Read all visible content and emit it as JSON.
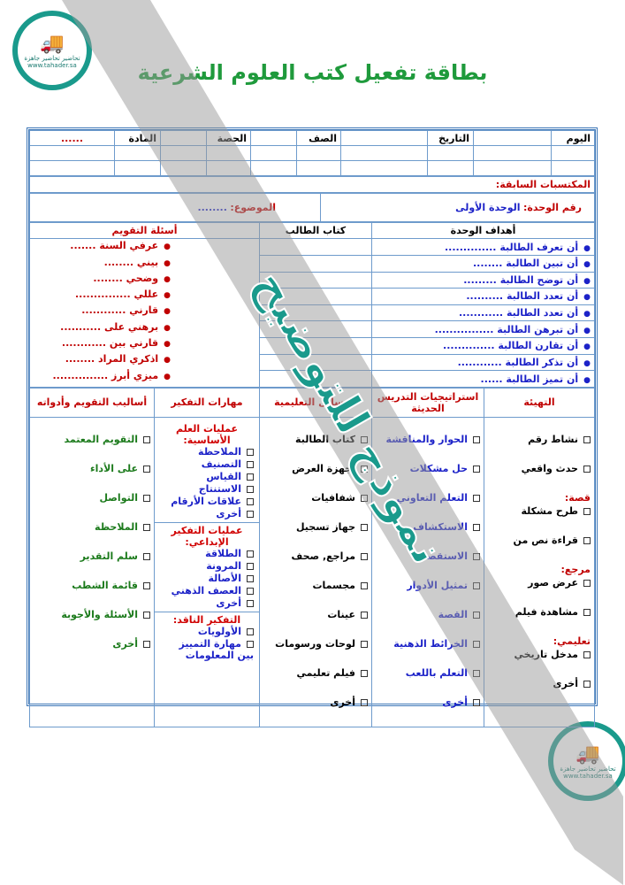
{
  "logo": {
    "brand": "تحاضير تحاضير جاهزة",
    "site": "www.tahader.sa"
  },
  "title": "بطاقة تفعيل كتب العلوم الشرعية",
  "header": {
    "day": "اليوم",
    "date": "التاريخ",
    "class": "الصف",
    "period": "الحصة",
    "subject": "المادة",
    "subject_value": "......"
  },
  "prior": "المكتسبات السابقة:",
  "unit": {
    "label": "رقم الوحدة:",
    "value": "الوحدة الأولى",
    "topic_label": "الموضوع:",
    "topic_value": "........"
  },
  "cols1": {
    "objectives": "أهداف الوحدة",
    "book": "كتاب الطالب",
    "questions": "أسئلة التقويم"
  },
  "objectives": [
    "أن تعرف الطالبة ..............",
    "أن تبين الطالبة ........",
    "أن توضح الطالبة .........",
    "أن تعدد الطالبة ..........",
    "أن تعدد الطالبة ............",
    "أن تبرهن الطالبة ................",
    "أن تقارن الطالبة ..............",
    "أن تذكر الطالبة ............",
    "أن تميز الطالبة ......"
  ],
  "questions": [
    "عرفي السنة .......",
    "بيني ........",
    "وضحي ........",
    "عللي ...............",
    "قارني ............",
    "برهني على ...........",
    "قارني بين ............",
    "اذكري المراد ........",
    "ميزي أبرز ..............."
  ],
  "cols2": {
    "warmup": "التهيئة",
    "strategies": "استراتيجيات التدريس الحديثة",
    "aids": "الوسائل التعليمية",
    "thinking": "مهارات التفكير",
    "assessment": "أساليب التقويم وأدواته"
  },
  "warmup": {
    "items1": [
      "نشاط رقم",
      "حدث واقعي"
    ],
    "story": "قصة:",
    "items2": [
      "طرح مشكلة",
      "قراءة نص من"
    ],
    "ref": "مرجع:",
    "items3": [
      "عرض صور",
      "مشاهدة فيلم"
    ],
    "edu": "تعليمي:",
    "items4": [
      "مدخل تاريخي",
      "أخرى"
    ]
  },
  "strategies": [
    "الحوار والمناقشة",
    "حل مشكلات",
    "التعلم التعاوني",
    "الاستكشاف",
    "الاستقصاء",
    "تمثيل الأدوار",
    "القصة",
    "الخرائط الذهنية",
    "التعلم باللعب",
    "أخرى"
  ],
  "aids": [
    "كتاب الطالبة",
    "أجهزة العرض",
    "شفافيات",
    "جهاز تسجيل",
    "مراجع, صحف",
    "مجسمات",
    "عينات",
    "لوحات ورسومات",
    "فيلم تعليمي",
    "أخرى"
  ],
  "thinking": {
    "basic_title": "عمليات العلم الأساسية:",
    "basic": [
      "الملاحظة",
      "التصنيف",
      "القياس",
      "الاستنتاج",
      "علاقات الأرقام",
      "أخرى"
    ],
    "creative_title": "عمليات التفكير الإبداعي:",
    "creative": [
      "الطلاقة",
      "المرونة",
      "الأصالة",
      "العصف الذهني",
      "أخرى"
    ],
    "critical_title": "التفكير الناقد:",
    "critical": [
      "الأولويات",
      "مهارة التمييز بين المعلومات"
    ]
  },
  "assessment": [
    "التقويم المعتمد",
    "على الأداء",
    "التواصل",
    "الملاحظة",
    "سلم التقدير",
    "قائمة الشطب",
    "الأسئلة والأجوبة",
    "أخرى"
  ],
  "watermark": "نموذج للتوضيح",
  "colors": {
    "title": "#1f9a3c",
    "border": "#3f78b8",
    "red": "#c00000",
    "blue": "#1c22c8",
    "green": "#1b7a1b",
    "teal": "#1a9a8c"
  }
}
